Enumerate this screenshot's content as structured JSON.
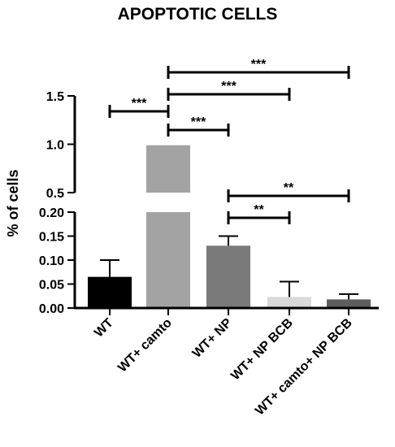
{
  "chart_data": {
    "type": "bar",
    "title": "APOPTOTIC CELLS",
    "ylabel": "% of cells",
    "xlabel": "",
    "categories": [
      "WT",
      "WT+ camto",
      "WT+ NP",
      "WT+ NP BCB",
      "WT+ camto+ NP BCB"
    ],
    "values": [
      0.065,
      0.99,
      0.13,
      0.023,
      0.018
    ],
    "error_upper": [
      0.1,
      0.99,
      0.15,
      0.055,
      0.029
    ],
    "bar_colors": [
      "#000000",
      "#a3a3a3",
      "#7a7a7a",
      "#d9d9d9",
      "#5e5e5e"
    ],
    "y_axis": {
      "broken": true,
      "lower_segment": {
        "range": [
          0,
          0.2
        ],
        "ticks": [
          "0.00",
          "0.05",
          "0.10",
          "0.15",
          "0.20"
        ]
      },
      "upper_segment": {
        "range": [
          0.5,
          1.5
        ],
        "ticks": [
          "0.5",
          "1.0",
          "1.5"
        ]
      }
    },
    "significance": [
      {
        "from": 0,
        "to": 1,
        "label": "***"
      },
      {
        "from": 1,
        "to": 2,
        "label": "***"
      },
      {
        "from": 1,
        "to": 3,
        "label": "***"
      },
      {
        "from": 1,
        "to": 4,
        "label": "***"
      },
      {
        "from": 2,
        "to": 3,
        "label": "**"
      },
      {
        "from": 2,
        "to": 4,
        "label": "**"
      }
    ],
    "grid": false,
    "legend": "none"
  }
}
